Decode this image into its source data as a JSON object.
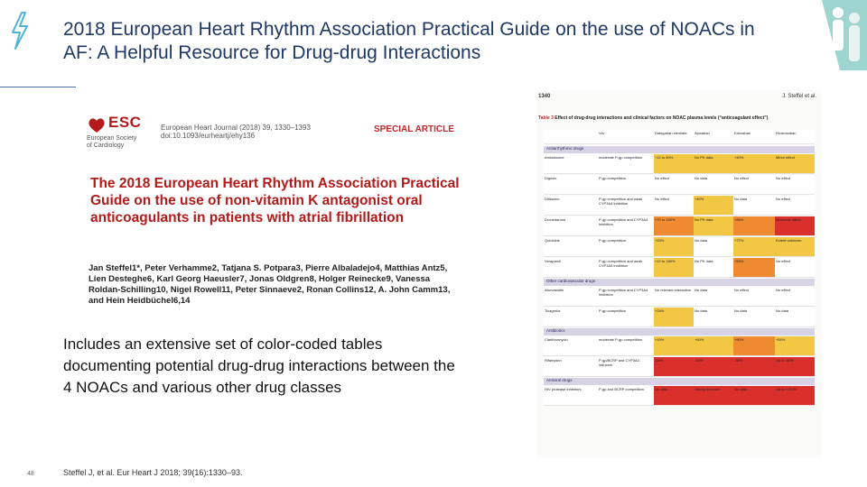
{
  "slide": {
    "title": "2018 European Heart Rhythm Association Practical Guide on the use of NOACs in AF: A Helpful Resource for Drug-drug Interactions",
    "description": "Includes an extensive set of color-coded tables documenting potential drug-drug interactions between the 4 NOACs and various other drug classes",
    "slide_number": "48",
    "citation": "Steffel J, et al. Eur Heart J 2018; 39(16):1330–93."
  },
  "colors": {
    "title": "#1f3864",
    "accent_red": "#b31b1b",
    "bolt": "#4fb3d9"
  },
  "article": {
    "logo_text": "ESC",
    "society_lines": [
      "European Society",
      "of Cardiology"
    ],
    "journal_lines": [
      "European Heart Journal (2018) 39, 1330–1393",
      "doi:10.1093/eurheartj/ehy136"
    ],
    "section": "SPECIAL ARTICLE",
    "title": "The 2018 European Heart Rhythm Association Practical Guide on the use of non-vitamin K antagonist oral anticoagulants in patients with atrial fibrillation",
    "authors": "Jan Steffel1*, Peter Verhamme2, Tatjana S. Potpara3, Pierre Albaladejo4, Matthias Antz5, Lien Desteghe6, Karl Georg Haeusler7, Jonas Oldgren8, Holger Reinecke9, Vanessa Roldan-Schilling10, Nigel Rowell11, Peter Sinnaeve2, Ronan Collins12, A. John Camm13, and Hein Heidbüchel6,14"
  },
  "table_page": {
    "page_number": "1340",
    "running_head": "J. Steffel et al.",
    "caption_label": "Table 3",
    "caption": "Effect of drug-drug interactions and clinical factors on NOAC plasma levels (“anticoagulant effect”)",
    "columns": [
      "",
      "Via",
      "Dabigatran etexilate",
      "Apixaban",
      "Edoxaban",
      "Rivaroxaban"
    ],
    "sections": [
      {
        "name": "Antiarrhythmic drugs",
        "rows": [
          {
            "drug": "Amiodarone",
            "via": "moderate P-gp competition",
            "cells": [
              "+12 to 60%",
              "No PK data",
              "+40%",
              "Minor effect"
            ],
            "colors": [
              "#f2c744",
              "#f2c744",
              "#f2c744",
              "#f2c744"
            ]
          },
          {
            "drug": "Digoxin",
            "via": "P-gp competition",
            "cells": [
              "No effect",
              "No data",
              "No effect",
              "No effect"
            ],
            "colors": [
              "#ffffff",
              "#ffffff",
              "#ffffff",
              "#ffffff"
            ]
          },
          {
            "drug": "Diltiazem",
            "via": "P-gp competition and weak CYP3A4 inhibition",
            "cells": [
              "No effect",
              "+40%",
              "No data",
              "No effect"
            ],
            "colors": [
              "#ffffff",
              "#f2c744",
              "#ffffff",
              "#ffffff"
            ]
          },
          {
            "drug": "Dronedarone",
            "via": "P-gp competition and CYP3A4 inhibition",
            "cells": [
              "+70 to 100%",
              "No PK data",
              "+85%",
              "Moderate effect"
            ],
            "colors": [
              "#ee8a2f",
              "#f2c744",
              "#ee8a2f",
              "#d9302c"
            ]
          },
          {
            "drug": "Quinidine",
            "via": "P-gp competition",
            "cells": [
              "+53%",
              "No data",
              "+77%",
              "Extent unknown"
            ],
            "colors": [
              "#f2c744",
              "#ffffff",
              "#f2c744",
              "#f2c744"
            ]
          },
          {
            "drug": "Verapamil",
            "via": "P-gp competition and weak CYP3A4 inhibition",
            "cells": [
              "+12 to 180%",
              "No PK data",
              "+53%",
              "No effect"
            ],
            "colors": [
              "#f2c744",
              "#ffffff",
              "#ee8a2f",
              "#ffffff"
            ]
          }
        ]
      },
      {
        "name": "Other cardiovascular drugs",
        "rows": [
          {
            "drug": "Atorvastatin",
            "via": "P-gp competition and CYP3A4 inhibition",
            "cells": [
              "No relevant interaction",
              "No data",
              "No effect",
              "No effect"
            ],
            "colors": [
              "#ffffff",
              "#ffffff",
              "#ffffff",
              "#ffffff"
            ]
          },
          {
            "drug": "Ticagrelor",
            "via": "P-gp competition",
            "cells": [
              "+24%",
              "No data",
              "No data",
              "No data"
            ],
            "colors": [
              "#f2c744",
              "#ffffff",
              "#ffffff",
              "#ffffff"
            ]
          }
        ]
      },
      {
        "name": "Antibiotics",
        "rows": [
          {
            "drug": "Clarithromycin",
            "via": "moderate P-gp competition",
            "cells": [
              "+19%",
              "+60%",
              "+90%",
              "+54%"
            ],
            "colors": [
              "#f2c744",
              "#f2c744",
              "#ee8a2f",
              "#f2c744"
            ]
          },
          {
            "drug": "Rifampicin",
            "via": "P-gp/BCRP and CYP3A4 inducers",
            "cells": [
              "-66%",
              "-54%",
              "-35%",
              "Up to -50%"
            ],
            "colors": [
              "#d9302c",
              "#d9302c",
              "#d9302c",
              "#d9302c"
            ]
          }
        ]
      },
      {
        "name": "Antiviral drugs",
        "rows": [
          {
            "drug": "HIV protease inhibitors",
            "via": "P-gp and BCRP competition",
            "cells": [
              "No data",
              "Strong increase",
              "No data",
              "Up to +153%"
            ],
            "colors": [
              "#d9302c",
              "#d9302c",
              "#d9302c",
              "#d9302c"
            ]
          }
        ]
      }
    ]
  }
}
